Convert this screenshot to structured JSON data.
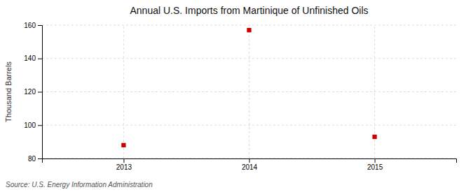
{
  "chart_data": {
    "type": "scatter",
    "title": "Annual U.S. Imports from Martinique of Unfinished Oils",
    "ylabel": "Thousand Barrels",
    "source": "Source: U.S. Energy Information Administration",
    "x": [
      2013,
      2014,
      2015
    ],
    "values": [
      88,
      157,
      93
    ],
    "xlim": [
      2012.35,
      2015.65
    ],
    "xticks": [
      2013,
      2014,
      2015
    ],
    "ylim": [
      80,
      160
    ],
    "yticks": [
      80,
      100,
      120,
      140,
      160
    ],
    "color": "#CC0000",
    "marker": "square",
    "grid": true
  }
}
